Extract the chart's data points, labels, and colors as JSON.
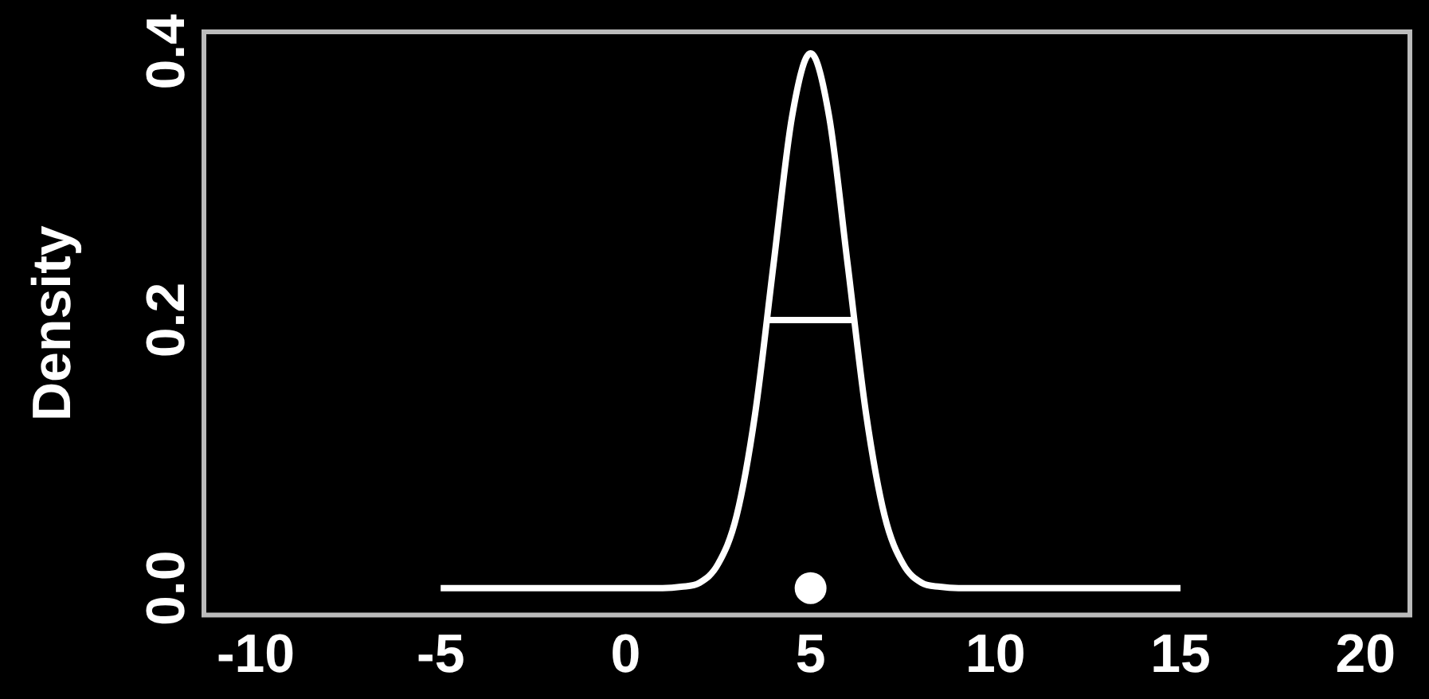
{
  "chart_data": {
    "type": "line",
    "ylabel": "Density",
    "xlim": [
      -11.4,
      21.2
    ],
    "xticks": [
      -10,
      -5,
      0,
      5,
      10,
      15,
      20
    ],
    "ylim": [
      -0.02,
      0.415
    ],
    "yticks": [
      {
        "value": 0,
        "label": "0.0"
      },
      {
        "value": 0.2,
        "label": "0.2"
      },
      {
        "value": 0.4,
        "label": "0.4"
      }
    ],
    "grid": false,
    "legend": false,
    "series": [
      {
        "color": "#ffffff",
        "x": [
          -5,
          1,
          1.5,
          2,
          2.5,
          3,
          3.5,
          4,
          4.5,
          5,
          5.5,
          6,
          6.5,
          7,
          7.5,
          8,
          8.5,
          9,
          15
        ],
        "values": [
          0,
          0,
          0.001,
          0.004,
          0.018,
          0.054,
          0.13,
          0.242,
          0.352,
          0.399,
          0.352,
          0.242,
          0.13,
          0.054,
          0.018,
          0.004,
          0.001,
          0,
          0
        ]
      },
      {
        "color": "#ffffff",
        "x": [
          3.8,
          6.2
        ],
        "values": [
          0.2,
          0.2
        ]
      },
      {
        "type": "scatter",
        "color": "#ffffff",
        "marker": "circle",
        "x": [
          5
        ],
        "values": [
          0
        ]
      }
    ]
  }
}
